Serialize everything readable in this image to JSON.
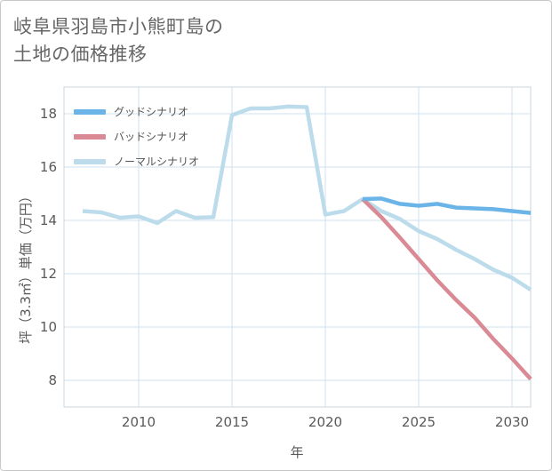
{
  "title_lines": [
    "岐阜県羽島市小熊町島の",
    "土地の価格推移"
  ],
  "chart_data": {
    "type": "line",
    "title": "岐阜県羽島市小熊町島の土地の価格推移",
    "xlabel": "年",
    "ylabel": "坪（3.3㎡）単価（万円）",
    "xlim": [
      2006,
      2031
    ],
    "ylim": [
      7,
      19
    ],
    "xticks": [
      2010,
      2015,
      2020,
      2025,
      2030
    ],
    "yticks": [
      8,
      10,
      12,
      14,
      16,
      18
    ],
    "grid": true,
    "legend_position": "top-left",
    "series": [
      {
        "name": "グッドシナリオ",
        "color": "#6ab4e8",
        "x": [
          2022,
          2023,
          2024,
          2025,
          2026,
          2027,
          2028,
          2029,
          2030,
          2031
        ],
        "values": [
          14.8,
          14.82,
          14.62,
          14.55,
          14.62,
          14.48,
          14.45,
          14.42,
          14.35,
          14.28
        ]
      },
      {
        "name": "バッドシナリオ",
        "color": "#d98a94",
        "x": [
          2022,
          2023,
          2024,
          2025,
          2026,
          2027,
          2028,
          2029,
          2030,
          2031
        ],
        "values": [
          14.8,
          14.12,
          13.35,
          12.55,
          11.75,
          11.02,
          10.35,
          9.55,
          8.82,
          8.05
        ]
      },
      {
        "name": "ノーマルシナリオ",
        "color": "#bcdcec",
        "x": [
          2007,
          2008,
          2009,
          2010,
          2011,
          2012,
          2013,
          2014,
          2015,
          2016,
          2017,
          2018,
          2019,
          2020,
          2021,
          2022,
          2023,
          2024,
          2025,
          2026,
          2027,
          2028,
          2029,
          2030,
          2031
        ],
        "values": [
          14.35,
          14.3,
          14.1,
          14.15,
          13.9,
          14.35,
          14.1,
          14.12,
          17.95,
          18.2,
          18.2,
          18.27,
          18.25,
          14.22,
          14.35,
          14.8,
          14.35,
          14.05,
          13.6,
          13.3,
          12.9,
          12.55,
          12.15,
          11.85,
          11.4
        ]
      }
    ]
  }
}
